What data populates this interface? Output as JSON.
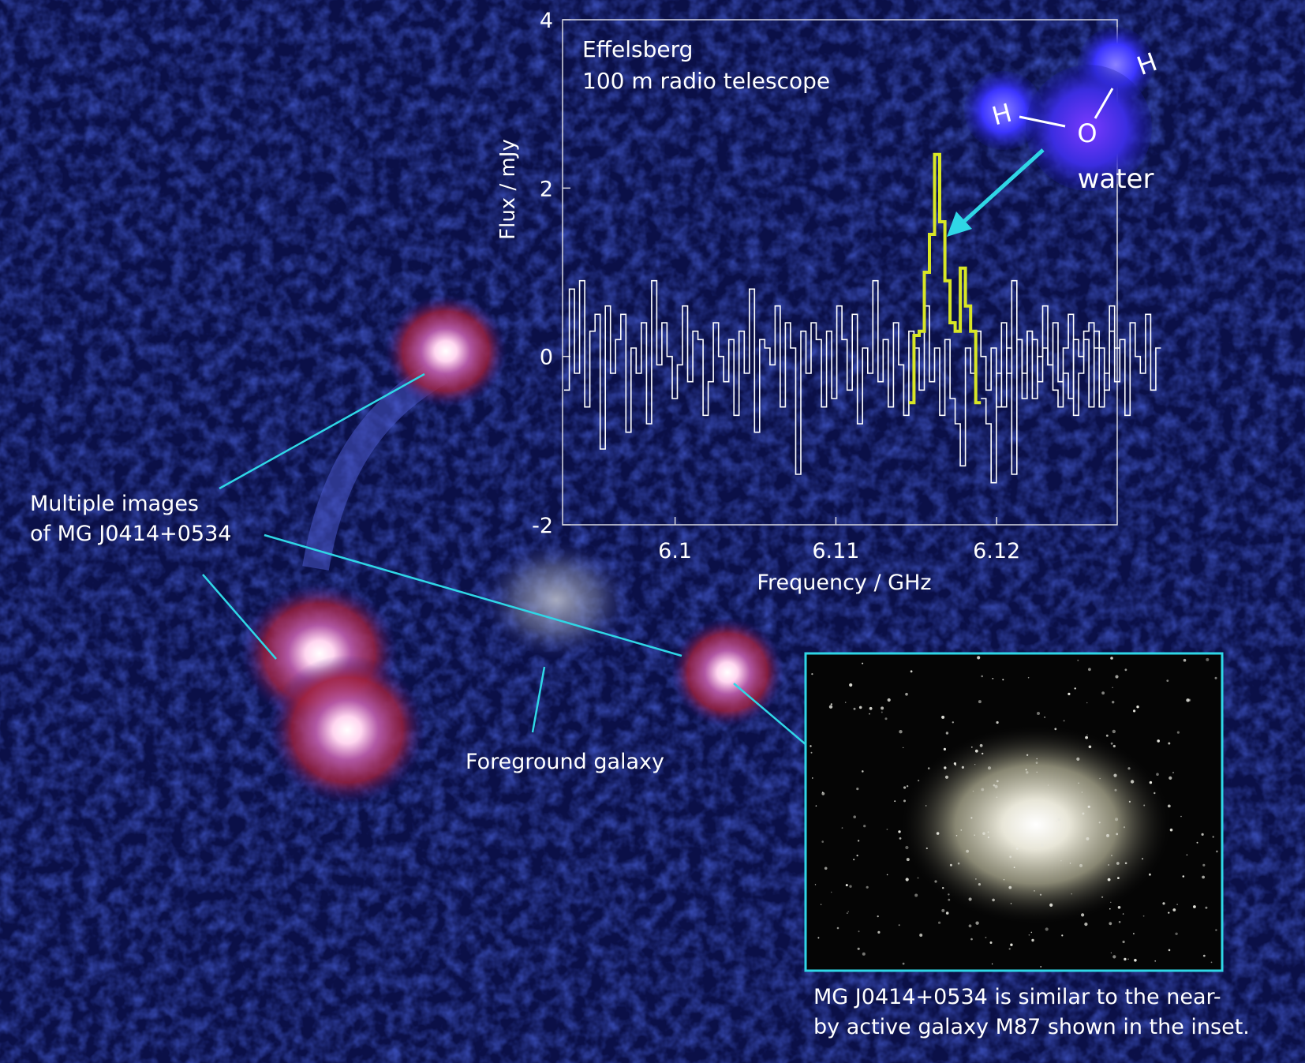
{
  "labels": {
    "multiple_images_line1": "Multiple images",
    "multiple_images_line2": "of MG J0414+0534",
    "foreground_galaxy": "Foreground galaxy",
    "caption_line1": "MG J0414+0534 is similar to the near-",
    "caption_line2": "by active galaxy M87 shown in the inset.",
    "molecule_name": "water",
    "atom_h1": "H",
    "atom_o": "O",
    "atom_h2": "H"
  },
  "colors": {
    "background": "#0a0f3a",
    "callout_line": "#2fd6e6",
    "inset_frame": "#2fd6e6",
    "spectrum_line": "#ffffff",
    "water_line": "#d8e626",
    "galaxy_red": "#c0203a",
    "molecule_blue": "#3b35ff"
  },
  "chart_data": {
    "type": "line",
    "title_line1": "Effelsberg",
    "title_line2": "100 m radio telescope",
    "xlabel": "Frequency / GHz",
    "ylabel": "Flux / mJy",
    "xlim": [
      6.093,
      6.1275
    ],
    "ylim": [
      -2,
      4
    ],
    "xticks": [
      6.1,
      6.11,
      6.12
    ],
    "xtick_labels": [
      "6.1",
      "6.11",
      "6.12"
    ],
    "yticks": [
      -2,
      0,
      2,
      4
    ],
    "ytick_labels": [
      "-2",
      "0",
      "2",
      "4"
    ],
    "step": 0.00032,
    "series": [
      {
        "x_start": 6.0931,
        "values": [
          -0.4,
          0.8,
          -0.2,
          0.9,
          -0.6,
          0.3,
          0.5,
          -1.1,
          0.6,
          -0.2,
          0.2,
          0.5,
          -0.9,
          0.1,
          -0.2,
          0.4,
          -0.8,
          0.9,
          -0.1,
          0.4,
          0.0,
          -0.5,
          -0.1,
          0.6,
          -0.3,
          0.3,
          0.2,
          -0.7,
          -0.3,
          0.4,
          0.0,
          -0.3,
          0.2,
          -0.7,
          0.3,
          -0.2,
          0.8,
          -0.9,
          0.2,
          0.1,
          -0.1,
          0.6,
          -0.6,
          0.4,
          0.1,
          -1.4,
          0.3,
          -0.2,
          0.4,
          0.2,
          -0.6,
          0.3,
          -0.5,
          0.6,
          0.2,
          -0.4,
          0.5,
          -0.8,
          0.1,
          -0.2,
          0.9,
          -0.3,
          0.2,
          -0.6,
          0.4,
          -0.1,
          -0.7,
          0.3,
          0.1,
          -0.4,
          0.6,
          -0.3,
          0.1,
          -0.7,
          0.2,
          -0.5,
          -0.8,
          -1.3,
          0.1,
          -0.2,
          0.3,
          0.0,
          -0.4,
          0.1,
          -0.6,
          0.4,
          -0.2,
          0.9,
          0.2,
          -0.5,
          0.3,
          0.2,
          -0.3,
          0.1,
          -0.1,
          -0.4,
          -0.6,
          -0.2,
          -0.5,
          0.2,
          0.0,
          0.3,
          0.4,
          0.1,
          -0.6,
          -0.2,
          0.3,
          0.1
        ],
        "highlight": {
          "name": "water",
          "x_start": 6.11454,
          "values": [
            -0.55,
            0.25,
            0.3,
            1.0,
            1.45,
            2.4,
            1.6,
            0.9,
            0.4,
            0.3,
            1.05,
            0.6,
            0.3,
            -0.55
          ]
        },
        "tail_x_start": 6.11902,
        "tail_values": [
          -0.5,
          -0.8,
          -1.5,
          -0.2,
          -0.6,
          0.1,
          -1.4,
          0.2,
          -0.2,
          0.3,
          -0.5,
          0.0,
          0.6,
          -0.1,
          0.4,
          -0.3,
          0.1,
          0.5,
          -0.7,
          -0.2,
          0.2,
          -0.6,
          0.3,
          0.1,
          -0.4,
          0.6,
          -0.3,
          0.2,
          -0.7,
          0.4,
          0.0,
          -0.2,
          0.5,
          -0.4,
          0.1
        ]
      }
    ],
    "grid": false,
    "legend": "none"
  }
}
